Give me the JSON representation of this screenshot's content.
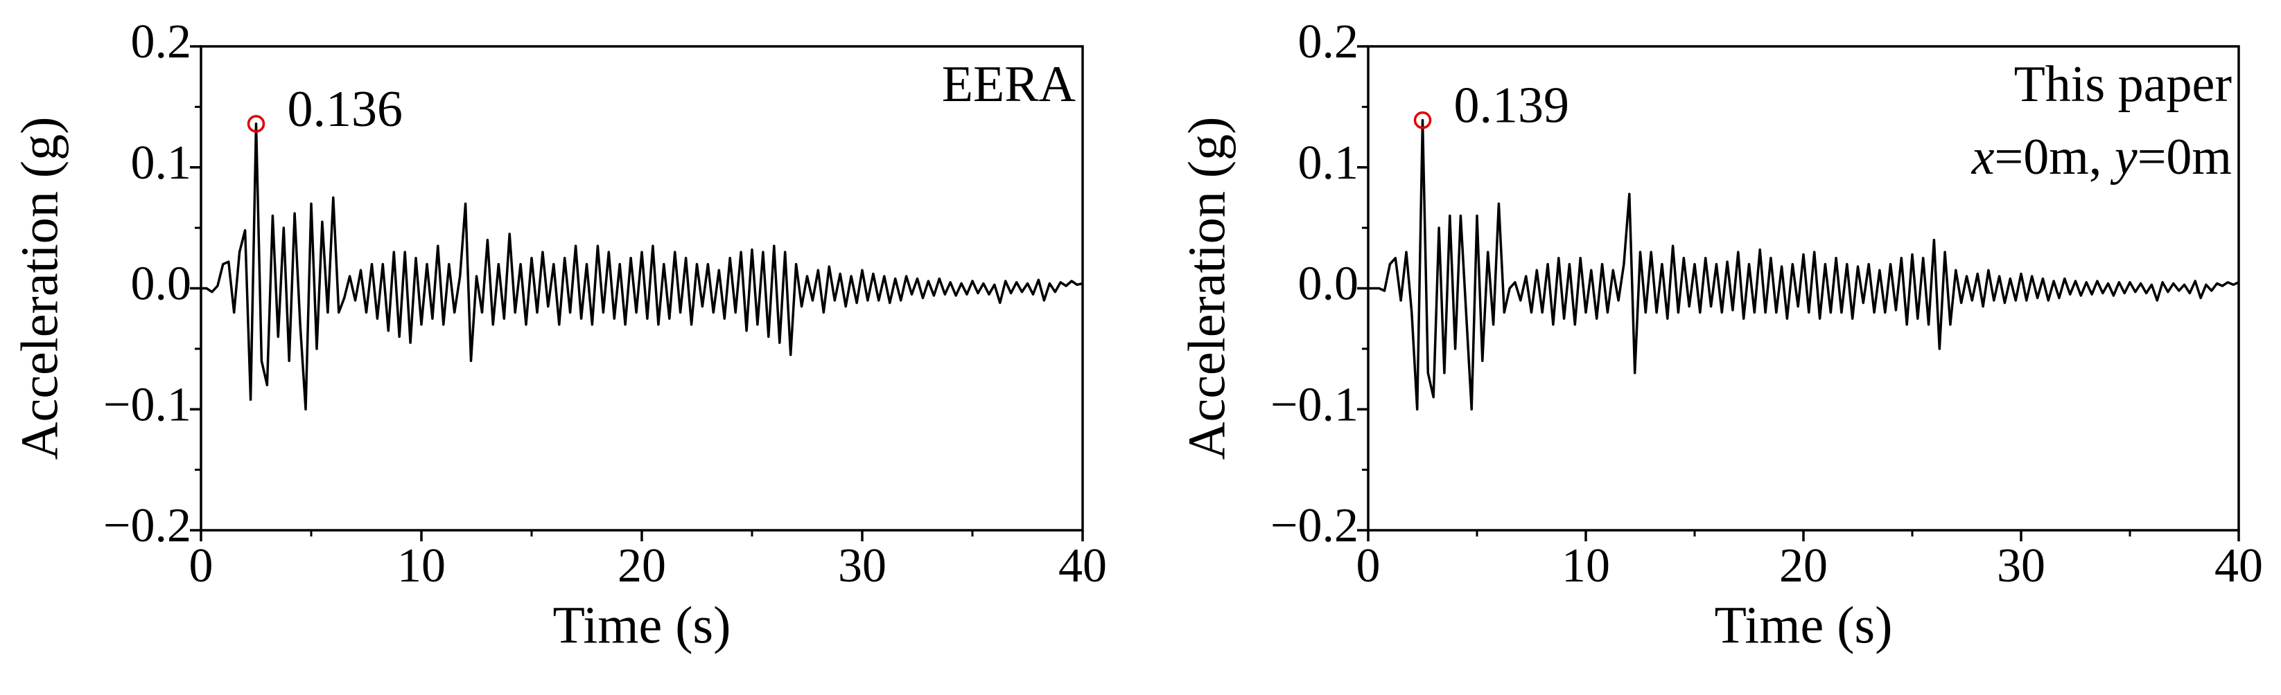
{
  "chart_data": [
    {
      "type": "line",
      "xlabel": "Time (s)",
      "ylabel": "Acceleration (g)",
      "labels": [
        "EERA"
      ],
      "xlim": [
        0,
        40
      ],
      "ylim": [
        -0.2,
        0.2
      ],
      "xticks": [
        0,
        10,
        20,
        30,
        40
      ],
      "yticks": [
        0.2,
        0.1,
        {
          "value": 0,
          "label": "0.0"
        },
        {
          "value": -0.1,
          "label": "−0.1"
        },
        {
          "value": -0.2,
          "label": "−0.2"
        }
      ],
      "peak": {
        "x": 2.5,
        "value": 0.136,
        "color": "#e00000"
      },
      "x": [
        0,
        0.25,
        0.5,
        0.75,
        1,
        1.25,
        1.5,
        1.75,
        2,
        2.25,
        2.5,
        2.75,
        3,
        3.25,
        3.5,
        3.75,
        4,
        4.25,
        4.5,
        4.75,
        5,
        5.25,
        5.5,
        5.75,
        6,
        6.25,
        6.5,
        6.75,
        7,
        7.25,
        7.5,
        7.75,
        8,
        8.25,
        8.5,
        8.75,
        9,
        9.25,
        9.5,
        9.75,
        10,
        10.25,
        10.5,
        10.75,
        11,
        11.25,
        11.5,
        11.75,
        12,
        12.25,
        12.5,
        12.75,
        13,
        13.25,
        13.5,
        13.75,
        14,
        14.25,
        14.5,
        14.75,
        15,
        15.25,
        15.5,
        15.75,
        16,
        16.25,
        16.5,
        16.75,
        17,
        17.25,
        17.5,
        17.75,
        18,
        18.25,
        18.5,
        18.75,
        19,
        19.25,
        19.5,
        19.75,
        20,
        20.25,
        20.5,
        20.75,
        21,
        21.25,
        21.5,
        21.75,
        22,
        22.25,
        22.5,
        22.75,
        23,
        23.25,
        23.5,
        23.75,
        24,
        24.25,
        24.5,
        24.75,
        25,
        25.25,
        25.5,
        25.75,
        26,
        26.25,
        26.5,
        26.75,
        27,
        27.25,
        27.5,
        27.75,
        28,
        28.25,
        28.5,
        28.75,
        29,
        29.25,
        29.5,
        29.75,
        30,
        30.25,
        30.5,
        30.75,
        31,
        31.25,
        31.5,
        31.75,
        32,
        32.25,
        32.5,
        32.75,
        33,
        33.25,
        33.5,
        33.75,
        34,
        34.25,
        34.5,
        34.75,
        35,
        35.25,
        35.5,
        35.75,
        36,
        36.25,
        36.5,
        36.75,
        37,
        37.25,
        37.5,
        37.75,
        38,
        38.25,
        38.5,
        38.75,
        39,
        39.25,
        39.5,
        39.75,
        40
      ],
      "series": [
        {
          "color": "#000000",
          "values": [
            0,
            0,
            -0.003,
            0.002,
            0.02,
            0.022,
            -0.02,
            0.03,
            0.048,
            -0.092,
            0.136,
            -0.06,
            -0.08,
            0.06,
            -0.04,
            0.05,
            -0.06,
            0.062,
            -0.03,
            -0.1,
            0.07,
            -0.05,
            0.055,
            -0.02,
            0.075,
            -0.02,
            -0.008,
            0.01,
            -0.01,
            0.015,
            -0.02,
            0.02,
            -0.025,
            0.02,
            -0.035,
            0.03,
            -0.04,
            0.03,
            -0.045,
            0.025,
            -0.03,
            0.02,
            -0.025,
            0.035,
            -0.03,
            0.02,
            -0.02,
            0.01,
            0.07,
            -0.06,
            0.01,
            -0.02,
            0.04,
            -0.03,
            0.02,
            -0.025,
            0.045,
            -0.02,
            0.02,
            -0.03,
            0.025,
            -0.02,
            0.03,
            -0.015,
            0.02,
            -0.03,
            0.025,
            -0.02,
            0.035,
            -0.025,
            0.02,
            -0.03,
            0.035,
            -0.02,
            0.03,
            -0.025,
            0.02,
            -0.03,
            0.025,
            -0.02,
            0.03,
            -0.025,
            0.035,
            -0.03,
            0.02,
            -0.025,
            0.03,
            -0.02,
            0.025,
            -0.03,
            0.02,
            -0.015,
            0.02,
            -0.02,
            0.015,
            -0.025,
            0.025,
            -0.02,
            0.03,
            -0.035,
            0.032,
            -0.03,
            0.03,
            -0.04,
            0.035,
            -0.045,
            0.03,
            -0.055,
            0.02,
            -0.015,
            0.01,
            -0.01,
            0.015,
            -0.02,
            0.018,
            -0.01,
            0.012,
            -0.015,
            0.01,
            -0.012,
            0.015,
            -0.01,
            0.012,
            -0.01,
            0.01,
            -0.012,
            0.008,
            -0.01,
            0.01,
            -0.005,
            0.008,
            -0.008,
            0.006,
            -0.006,
            0.008,
            -0.005,
            0.005,
            -0.006,
            0.004,
            -0.005,
            0.006,
            -0.004,
            0.004,
            -0.005,
            0.003,
            -0.012,
            0.006,
            -0.004,
            0.005,
            -0.003,
            0.004,
            -0.005,
            0.007,
            -0.01,
            0.004,
            -0.003,
            0.005,
            0.002,
            0.006,
            0.003,
            0.004
          ]
        }
      ]
    },
    {
      "type": "line",
      "xlabel": "Time (s)",
      "ylabel": "Acceleration (g)",
      "labels": [
        "This paper",
        "x=0m, y=0m"
      ],
      "xlim": [
        0,
        40
      ],
      "ylim": [
        -0.2,
        0.2
      ],
      "xticks": [
        0,
        10,
        20,
        30,
        40
      ],
      "yticks": [
        0.2,
        0.1,
        {
          "value": 0,
          "label": "0.0"
        },
        {
          "value": -0.1,
          "label": "−0.1"
        },
        {
          "value": -0.2,
          "label": "−0.2"
        }
      ],
      "peak": {
        "x": 2.5,
        "value": 0.139,
        "color": "#e00000"
      },
      "x": [
        0,
        0.25,
        0.5,
        0.75,
        1,
        1.25,
        1.5,
        1.75,
        2,
        2.25,
        2.5,
        2.75,
        3,
        3.25,
        3.5,
        3.75,
        4,
        4.25,
        4.5,
        4.75,
        5,
        5.25,
        5.5,
        5.75,
        6,
        6.25,
        6.5,
        6.75,
        7,
        7.25,
        7.5,
        7.75,
        8,
        8.25,
        8.5,
        8.75,
        9,
        9.25,
        9.5,
        9.75,
        10,
        10.25,
        10.5,
        10.75,
        11,
        11.25,
        11.5,
        11.75,
        12,
        12.25,
        12.5,
        12.75,
        13,
        13.25,
        13.5,
        13.75,
        14,
        14.25,
        14.5,
        14.75,
        15,
        15.25,
        15.5,
        15.75,
        16,
        16.25,
        16.5,
        16.75,
        17,
        17.25,
        17.5,
        17.75,
        18,
        18.25,
        18.5,
        18.75,
        19,
        19.25,
        19.5,
        19.75,
        20,
        20.25,
        20.5,
        20.75,
        21,
        21.25,
        21.5,
        21.75,
        22,
        22.25,
        22.5,
        22.75,
        23,
        23.25,
        23.5,
        23.75,
        24,
        24.25,
        24.5,
        24.75,
        25,
        25.25,
        25.5,
        25.75,
        26,
        26.25,
        26.5,
        26.75,
        27,
        27.25,
        27.5,
        27.75,
        28,
        28.25,
        28.5,
        28.75,
        29,
        29.25,
        29.5,
        29.75,
        30,
        30.25,
        30.5,
        30.75,
        31,
        31.25,
        31.5,
        31.75,
        32,
        32.25,
        32.5,
        32.75,
        33,
        33.25,
        33.5,
        33.75,
        34,
        34.25,
        34.5,
        34.75,
        35,
        35.25,
        35.5,
        35.75,
        36,
        36.25,
        36.5,
        36.75,
        37,
        37.25,
        37.5,
        37.75,
        38,
        38.25,
        38.5,
        38.75,
        39,
        39.25,
        39.5,
        39.75,
        40
      ],
      "series": [
        {
          "color": "#000000",
          "values": [
            0,
            0,
            0,
            -0.002,
            0.02,
            0.025,
            -0.01,
            0.03,
            -0.02,
            -0.1,
            0.139,
            -0.07,
            -0.09,
            0.05,
            -0.07,
            0.06,
            -0.05,
            0.06,
            -0.02,
            -0.1,
            0.06,
            -0.06,
            0.03,
            -0.03,
            0.07,
            -0.02,
            0,
            0.005,
            -0.01,
            0.01,
            -0.02,
            0.015,
            -0.02,
            0.02,
            -0.03,
            0.025,
            -0.025,
            0.02,
            -0.03,
            0.025,
            -0.02,
            0.015,
            -0.025,
            0.02,
            -0.02,
            0.015,
            -0.01,
            0.02,
            0.078,
            -0.07,
            0.03,
            -0.02,
            0.03,
            -0.02,
            0.02,
            -0.025,
            0.035,
            -0.02,
            0.025,
            -0.015,
            0.02,
            -0.02,
            0.025,
            -0.015,
            0.02,
            -0.02,
            0.022,
            -0.018,
            0.03,
            -0.025,
            0.02,
            -0.02,
            0.032,
            -0.02,
            0.025,
            -0.02,
            0.018,
            -0.025,
            0.02,
            -0.015,
            0.028,
            -0.02,
            0.03,
            -0.025,
            0.02,
            -0.02,
            0.025,
            -0.02,
            0.02,
            -0.025,
            0.018,
            -0.012,
            0.02,
            -0.02,
            0.015,
            -0.02,
            0.02,
            -0.018,
            0.025,
            -0.03,
            0.028,
            -0.025,
            0.025,
            -0.03,
            0.04,
            -0.05,
            0.03,
            -0.03,
            0.015,
            -0.012,
            0.01,
            -0.01,
            0.012,
            -0.015,
            0.015,
            -0.01,
            0.01,
            -0.012,
            0.008,
            -0.01,
            0.012,
            -0.01,
            0.01,
            -0.008,
            0.008,
            -0.01,
            0.006,
            -0.008,
            0.008,
            -0.005,
            0.006,
            -0.006,
            0.005,
            -0.005,
            0.006,
            -0.004,
            0.004,
            -0.006,
            0.005,
            -0.004,
            0.005,
            -0.003,
            0.004,
            -0.004,
            0.003,
            -0.01,
            0.005,
            -0.003,
            0.004,
            -0.002,
            0.003,
            -0.004,
            0.006,
            -0.008,
            0.003,
            -0.002,
            0.004,
            0.002,
            0.005,
            0.003,
            0.005
          ]
        }
      ]
    }
  ]
}
